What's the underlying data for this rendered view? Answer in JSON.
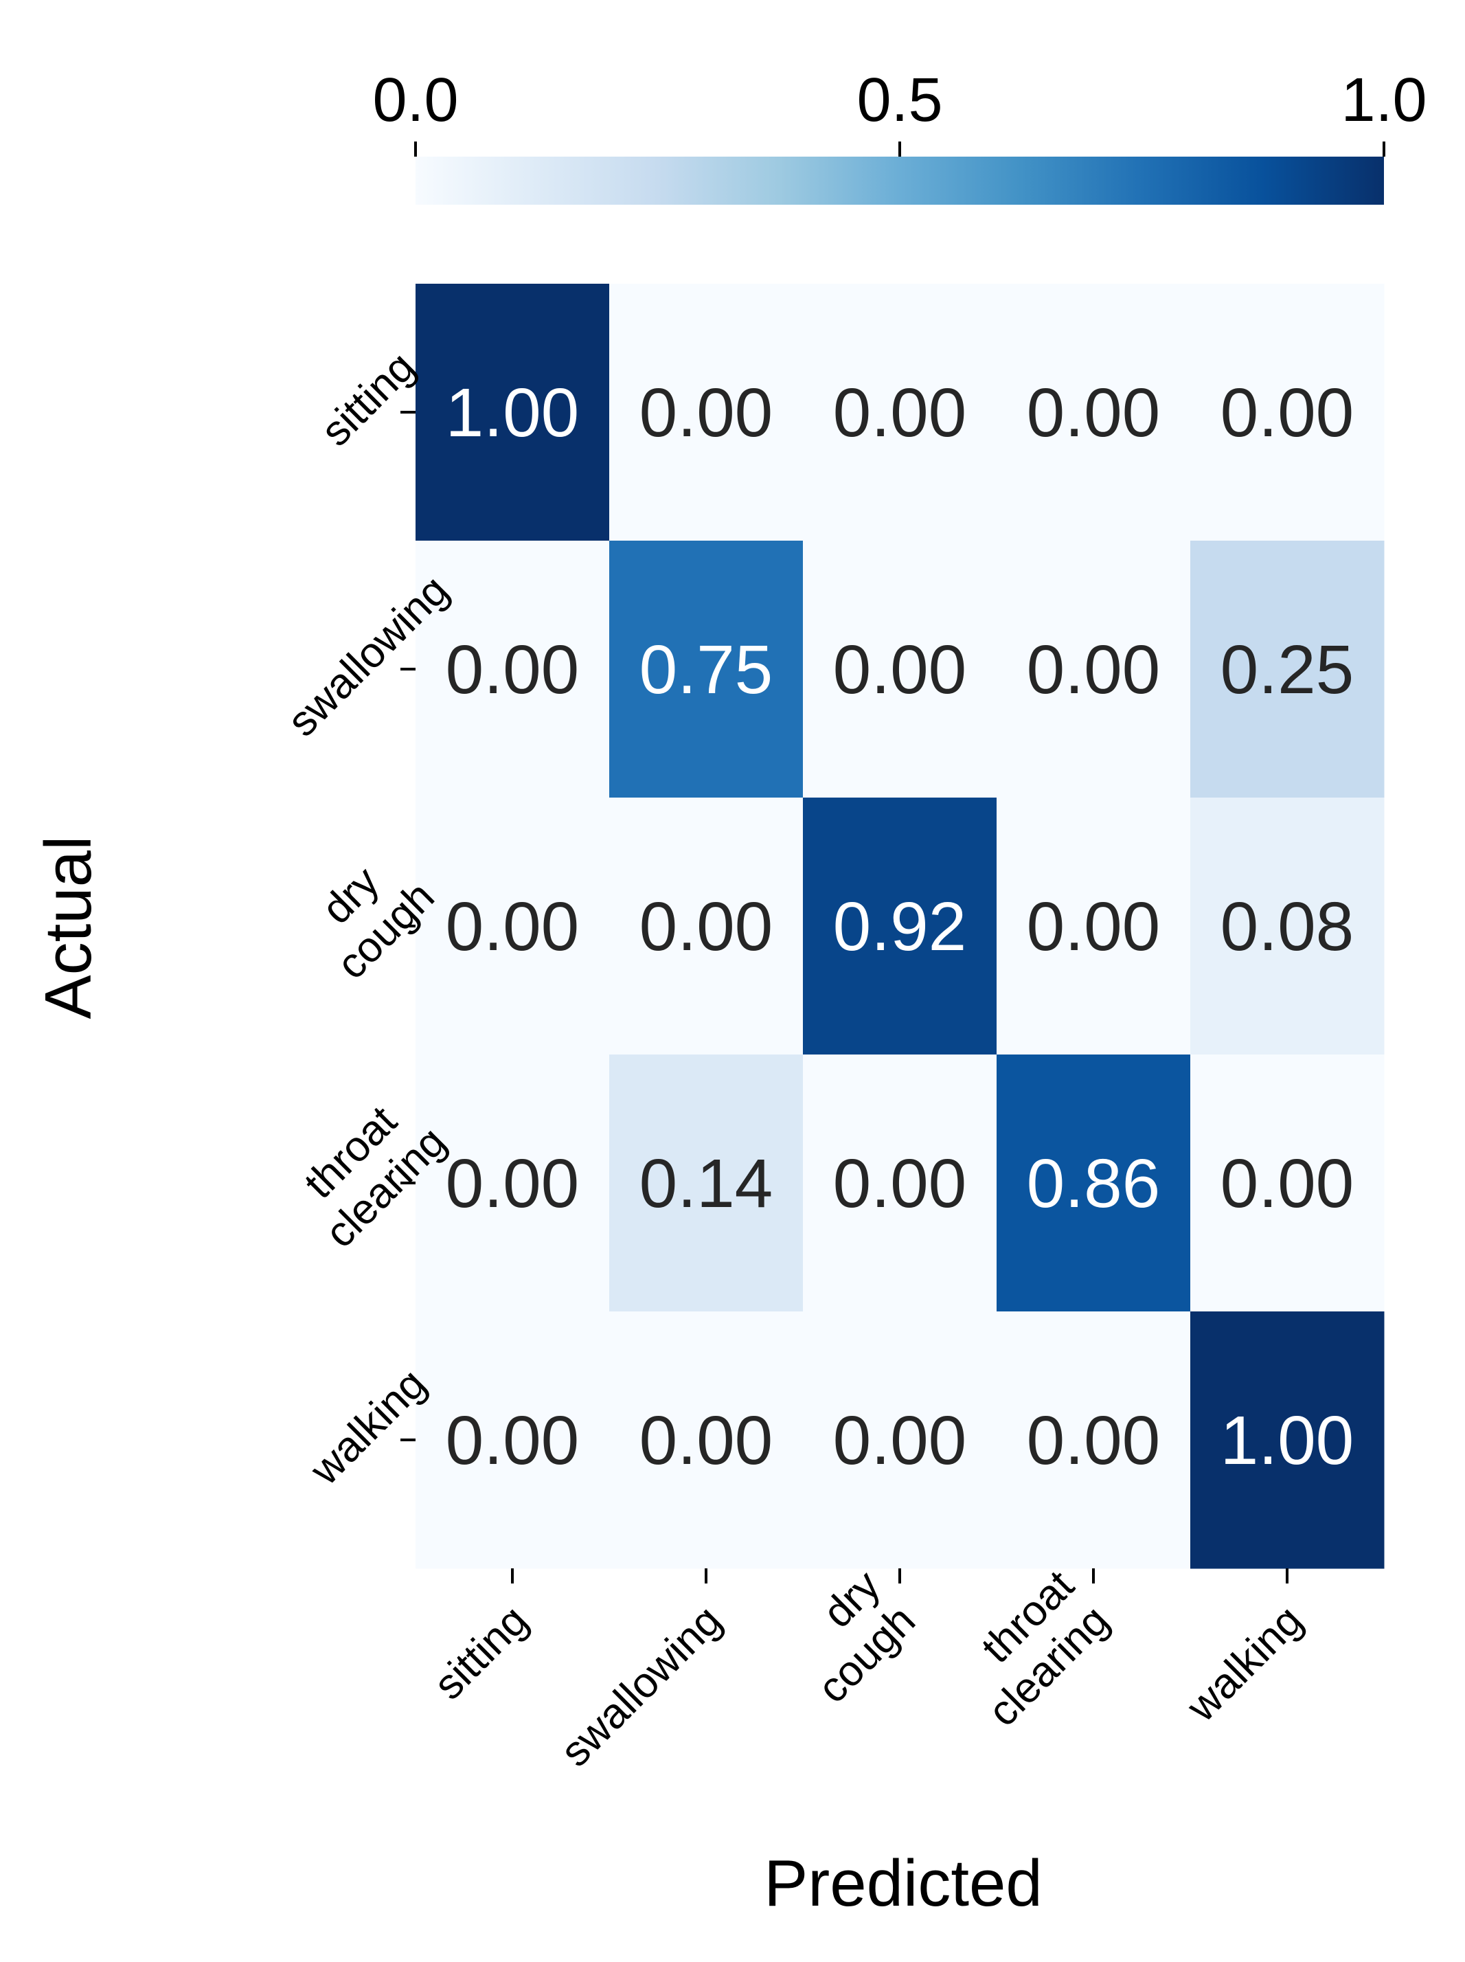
{
  "chart_data": {
    "type": "heatmap",
    "title": "",
    "xlabel": "Predicted",
    "ylabel": "Actual",
    "x_categories": [
      [
        "sitting"
      ],
      [
        "swallowing"
      ],
      [
        "dry",
        "cough"
      ],
      [
        "throat",
        "clearing"
      ],
      [
        "walking"
      ]
    ],
    "y_categories": [
      [
        "sitting"
      ],
      [
        "swallowing"
      ],
      [
        "dry",
        "cough"
      ],
      [
        "throat",
        "clearing"
      ],
      [
        "walking"
      ]
    ],
    "values": [
      [
        1.0,
        0.0,
        0.0,
        0.0,
        0.0
      ],
      [
        0.0,
        0.75,
        0.0,
        0.0,
        0.25
      ],
      [
        0.0,
        0.0,
        0.92,
        0.0,
        0.08
      ],
      [
        0.0,
        0.14,
        0.0,
        0.86,
        0.0
      ],
      [
        0.0,
        0.0,
        0.0,
        0.0,
        1.0
      ]
    ],
    "value_format": "0.00",
    "colormap": "Blues",
    "colormap_stops": [
      "#f7fbff",
      "#deebf7",
      "#c6dbef",
      "#9ecae1",
      "#6baed6",
      "#4292c6",
      "#2171b5",
      "#08519c",
      "#08306b"
    ],
    "text_color_dark": "#262626",
    "text_color_light": "#ffffff",
    "colorbar": {
      "position": "top",
      "range": [
        0.0,
        1.0
      ],
      "ticks": [
        0.0,
        0.5,
        1.0
      ],
      "tick_labels": [
        "0.0",
        "0.5",
        "1.0"
      ]
    }
  }
}
